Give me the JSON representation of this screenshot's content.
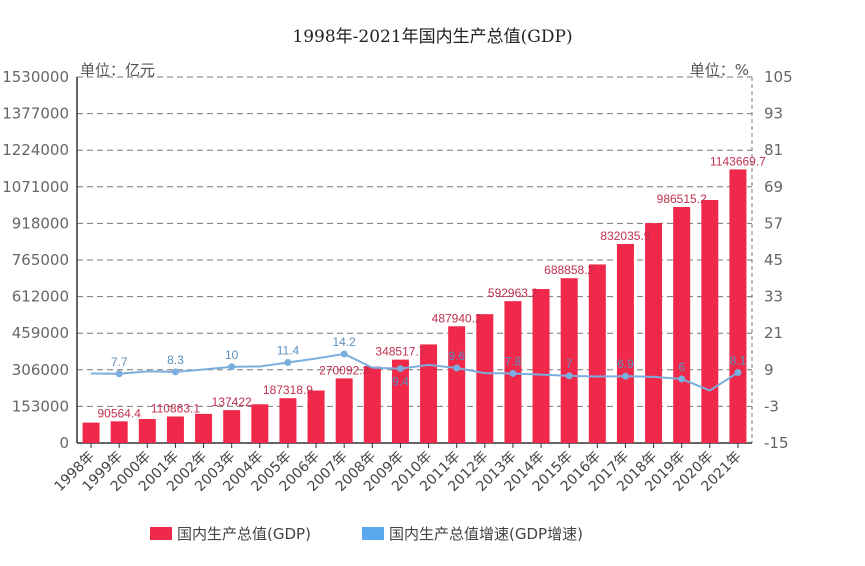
{
  "chart_data": {
    "type": "bar+line",
    "title": "1998年-2021年国内生产总值(GDP)",
    "left_unit": "单位：亿元",
    "right_unit": "单位：%",
    "categories": [
      "1998年",
      "1999年",
      "2000年",
      "2001年",
      "2002年",
      "2003年",
      "2004年",
      "2005年",
      "2006年",
      "2007年",
      "2008年",
      "2009年",
      "2010年",
      "2011年",
      "2012年",
      "2013年",
      "2014年",
      "2015年",
      "2016年",
      "2017年",
      "2018年",
      "2019年",
      "2020年",
      "2021年"
    ],
    "left_ticks": [
      "0",
      "153000",
      "306000",
      "459000",
      "612000",
      "765000",
      "918000",
      "1071000",
      "1224000",
      "1377000",
      "1530000"
    ],
    "right_ticks": [
      "-15",
      "-3",
      "9",
      "21",
      "33",
      "45",
      "57",
      "69",
      "81",
      "93",
      "105"
    ],
    "ylim_left": [
      0,
      1530000
    ],
    "ylim_right": [
      -15,
      105
    ],
    "grid": true,
    "legend_position": "bottom",
    "series": [
      {
        "name": "国内生产总值(GDP)",
        "type": "bar",
        "color": "#f0284a",
        "values": [
          85195.5,
          90564.4,
          100280.1,
          110863.1,
          121717.4,
          137422,
          161840.2,
          187318.9,
          219438.5,
          270092.3,
          319244.6,
          348517.7,
          412119.3,
          487940.2,
          538580,
          592963.2,
          643563.1,
          688858.2,
          746395.1,
          832035.9,
          919281.1,
          986515.2,
          1015986.2,
          1143669.7
        ],
        "labels": [
          "",
          "90564.4",
          "",
          "110863.1",
          "",
          "137422",
          "",
          "187318.9",
          "",
          "270092.3",
          "",
          "348517.7",
          "",
          "487940.2",
          "",
          "592963.2",
          "",
          "688858.2",
          "",
          "832035.9",
          "",
          "986515.2",
          "",
          "1143669.7"
        ]
      },
      {
        "name": "国内生产总值增速(GDP增速)",
        "type": "line",
        "color": "#7aaede",
        "values": [
          7.8,
          7.7,
          8.5,
          8.3,
          9.1,
          10,
          10.1,
          11.4,
          12.7,
          14.2,
          9.7,
          9.4,
          10.6,
          9.6,
          7.9,
          7.8,
          7.4,
          7,
          6.8,
          6.9,
          6.7,
          6,
          2.2,
          8.1
        ],
        "labels": [
          "",
          "7.7",
          "",
          "8.3",
          "",
          "10",
          "",
          "11.4",
          "",
          "14.2",
          "",
          "9.4",
          "",
          "9.6",
          "",
          "7.8",
          "",
          "7",
          "",
          "6.9",
          "",
          "6",
          "",
          "8.1"
        ]
      }
    ]
  }
}
